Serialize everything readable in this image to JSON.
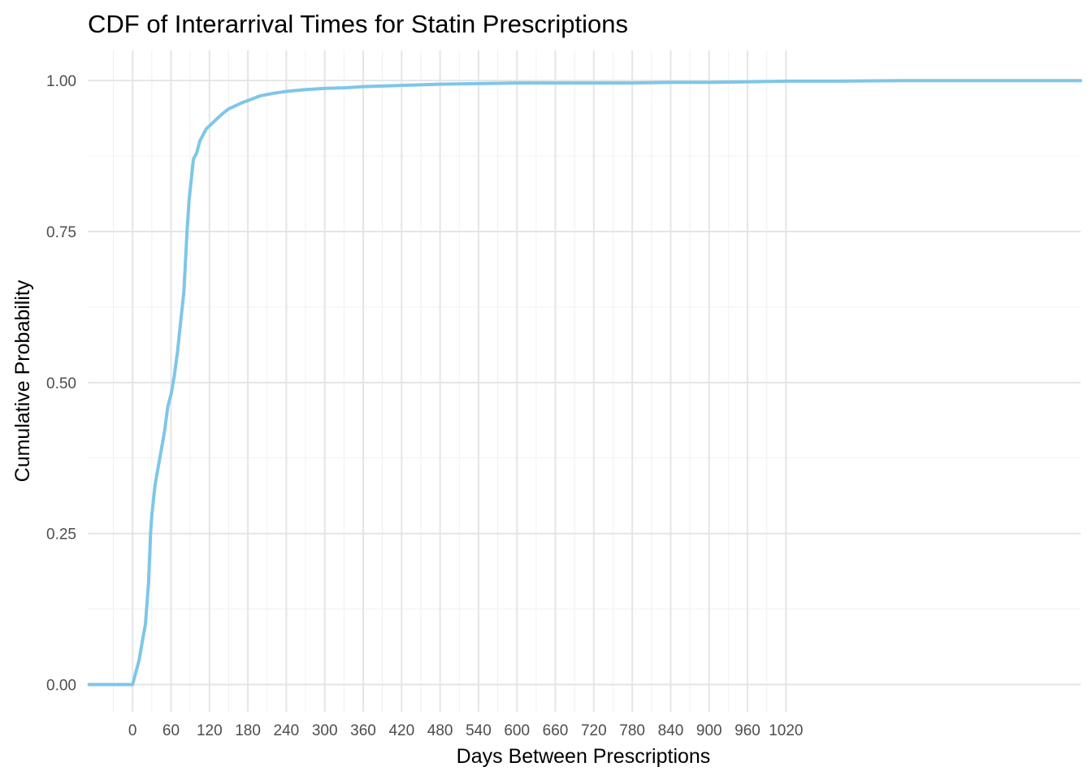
{
  "chart_data": {
    "type": "line",
    "title": "CDF of Interarrival Times for Statin Prescriptions",
    "xlabel": "Days Between Prescriptions",
    "ylabel": "Cumulative Probability",
    "x_ticks": [
      0,
      60,
      120,
      180,
      240,
      300,
      360,
      420,
      480,
      540,
      600,
      660,
      720,
      780,
      840,
      900,
      960,
      1020
    ],
    "x_tick_labels": [
      "0",
      "60",
      "120",
      "180",
      "240",
      "300",
      "360",
      "420",
      "480",
      "540",
      "600",
      "660",
      "720",
      "780",
      "840",
      "900",
      "960",
      "1020"
    ],
    "y_ticks": [
      0,
      0.25,
      0.5,
      0.75,
      1.0
    ],
    "y_tick_labels": [
      "0.00",
      "0.25",
      "0.50",
      "0.75",
      "1.00"
    ],
    "xlim": [
      -70,
      1480
    ],
    "ylim": [
      -0.045,
      1.05
    ],
    "grid": true,
    "legend": "none",
    "series": [
      {
        "color": "#7ec6e8",
        "x": [
          -68,
          0,
          5,
          10,
          15,
          20,
          25,
          28,
          30,
          35,
          40,
          45,
          50,
          55,
          60,
          65,
          70,
          75,
          80,
          85,
          88,
          90,
          92,
          95,
          100,
          105,
          110,
          115,
          120,
          130,
          140,
          150,
          160,
          170,
          180,
          200,
          220,
          240,
          270,
          300,
          330,
          360,
          390,
          420,
          450,
          480,
          540,
          600,
          660,
          720,
          780,
          840,
          900,
          960,
          1020,
          1100,
          1200,
          1300,
          1400,
          1480
        ],
        "y": [
          0,
          0,
          0.02,
          0.04,
          0.07,
          0.1,
          0.17,
          0.25,
          0.28,
          0.33,
          0.36,
          0.39,
          0.42,
          0.46,
          0.48,
          0.51,
          0.55,
          0.6,
          0.65,
          0.75,
          0.8,
          0.82,
          0.84,
          0.87,
          0.88,
          0.9,
          0.91,
          0.92,
          0.925,
          0.935,
          0.945,
          0.953,
          0.958,
          0.963,
          0.967,
          0.975,
          0.979,
          0.982,
          0.985,
          0.987,
          0.988,
          0.99,
          0.991,
          0.992,
          0.993,
          0.994,
          0.995,
          0.996,
          0.996,
          0.996,
          0.996,
          0.997,
          0.997,
          0.998,
          0.999,
          0.999,
          1.0,
          1.0,
          1.0,
          1.0
        ]
      }
    ]
  }
}
